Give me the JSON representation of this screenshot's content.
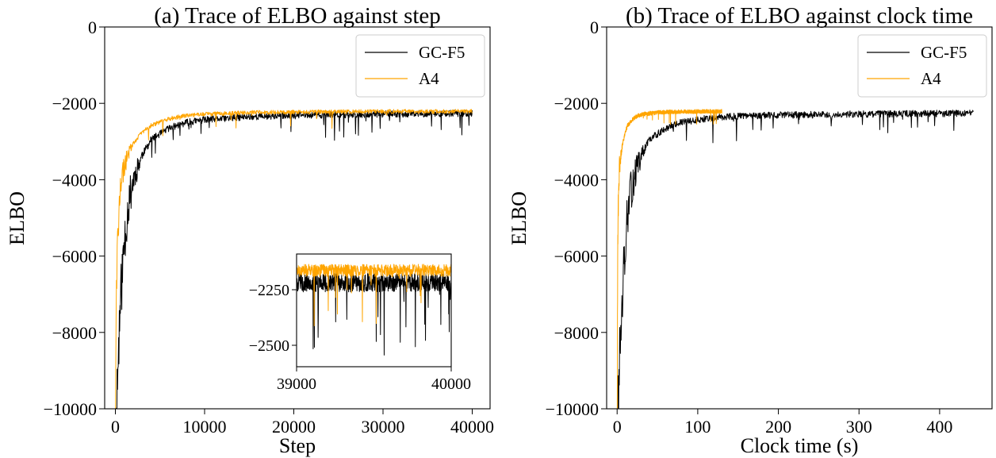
{
  "colors": {
    "gc_f5": "#000000",
    "a4": "#FFA500"
  },
  "chart_data": [
    {
      "type": "line",
      "title": "(a) Trace of ELBO against step",
      "xlabel": "Step",
      "ylabel": "ELBO",
      "xlim": [
        -1200,
        42000
      ],
      "ylim": [
        -10000,
        0
      ],
      "xticks": [
        "0",
        "10000",
        "20000",
        "30000",
        "40000"
      ],
      "yticks": [
        "0",
        "−2000",
        "−4000",
        "−6000",
        "−8000",
        "−10000"
      ],
      "legend": {
        "placement": "top-right",
        "entries": [
          "GC-F5",
          "A4"
        ]
      },
      "series": [
        {
          "name": "GC-F5",
          "color": "#000000",
          "x_end": 40000,
          "curve_x": [
            0,
            200,
            500,
            1000,
            1500,
            2000,
            3000,
            4000,
            6000,
            8000,
            10000,
            15000,
            20000,
            30000,
            40000
          ],
          "curve_y": [
            -11000,
            -9500,
            -7500,
            -5600,
            -4600,
            -4000,
            -3350,
            -2950,
            -2650,
            -2500,
            -2430,
            -2350,
            -2310,
            -2280,
            -2260
          ]
        },
        {
          "name": "A4",
          "color": "#FFA500",
          "x_end": 40000,
          "curve_x": [
            0,
            100,
            300,
            600,
            1000,
            1500,
            2000,
            3000,
            4000,
            6000,
            8000,
            10000,
            15000,
            20000,
            30000,
            40000
          ],
          "curve_y": [
            -10500,
            -7200,
            -5200,
            -4200,
            -3650,
            -3300,
            -3050,
            -2750,
            -2580,
            -2400,
            -2320,
            -2280,
            -2240,
            -2225,
            -2215,
            -2210
          ]
        }
      ],
      "inset": {
        "xlim": [
          39000,
          40000
        ],
        "ylim": [
          -2600,
          -2050
        ],
        "xticks": [
          "39000",
          "40000"
        ],
        "yticks": [
          "−2250",
          "−2500"
        ]
      }
    },
    {
      "type": "line",
      "title": "(b) Trace of ELBO against clock time",
      "xlabel": "Clock time (s)",
      "ylabel": "ELBO",
      "xlim": [
        -13,
        465
      ],
      "ylim": [
        -10000,
        0
      ],
      "xticks": [
        "0",
        "100",
        "200",
        "300",
        "400"
      ],
      "yticks": [
        "0",
        "−2000",
        "−4000",
        "−6000",
        "−8000",
        "−10000"
      ],
      "legend": {
        "placement": "top-right",
        "entries": [
          "GC-F5",
          "A4"
        ]
      },
      "series": [
        {
          "name": "GC-F5",
          "color": "#000000",
          "x_end": 442,
          "curve_x": [
            0,
            2,
            5,
            10,
            15,
            20,
            30,
            40,
            60,
            80,
            100,
            130,
            200,
            300,
            442
          ],
          "curve_y": [
            -11000,
            -9500,
            -7500,
            -5600,
            -4600,
            -4000,
            -3350,
            -2950,
            -2650,
            -2500,
            -2430,
            -2350,
            -2310,
            -2280,
            -2260
          ]
        },
        {
          "name": "A4",
          "color": "#FFA500",
          "x_end": 130,
          "curve_x": [
            0,
            0.5,
            1,
            2,
            3,
            5,
            7,
            10,
            13,
            20,
            26,
            33,
            50,
            65,
            100,
            130
          ],
          "curve_y": [
            -10500,
            -7200,
            -5200,
            -4200,
            -3650,
            -3300,
            -3050,
            -2750,
            -2580,
            -2400,
            -2320,
            -2280,
            -2240,
            -2225,
            -2215,
            -2210
          ]
        }
      ]
    }
  ]
}
